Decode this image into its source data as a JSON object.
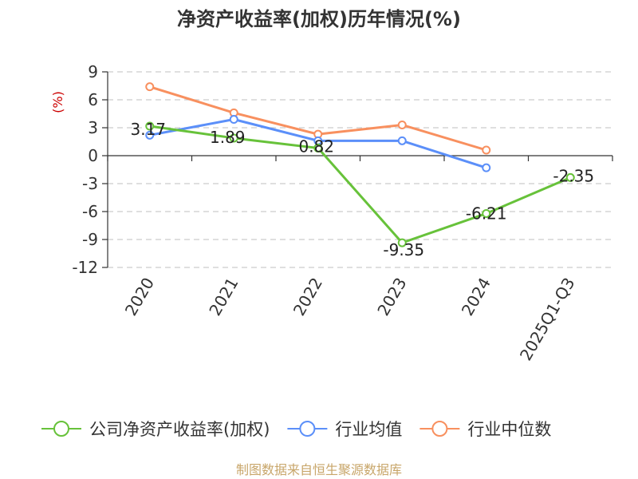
{
  "chart_data": {
    "type": "line",
    "title": "净资产收益率(加权)历年情况(%)",
    "ylabel": "(%)",
    "categories": [
      "2020",
      "2021",
      "2022",
      "2023",
      "2024",
      "2025Q1-Q3"
    ],
    "ylim": [
      -12,
      9
    ],
    "yticks": [
      "9",
      "6",
      "3",
      "0",
      "-3",
      "-6",
      "-9",
      "-12"
    ],
    "grid": true,
    "legend_position": "bottom",
    "series": [
      {
        "name": "公司净资产收益率(加权)",
        "color": "#67c23a",
        "values": [
          3.17,
          1.89,
          0.82,
          -9.35,
          -6.21,
          -2.35
        ],
        "labels": [
          "3.17",
          "1.89",
          "0.82",
          "-9.35",
          "-6.21",
          "-2.35"
        ]
      },
      {
        "name": "行业均值",
        "color": "#5b8ff9",
        "values": [
          2.2,
          3.9,
          1.6,
          1.6,
          -1.3,
          null
        ]
      },
      {
        "name": "行业中位数",
        "color": "#f8905f",
        "values": [
          7.4,
          4.6,
          2.3,
          3.3,
          0.6,
          null
        ]
      }
    ]
  },
  "source": {
    "text": "制图数据来自恒生聚源数据库",
    "color": "#c8a66a"
  },
  "colors": {
    "axis": "#333333",
    "grid": "#cccccc",
    "unit": "#cc0000"
  }
}
